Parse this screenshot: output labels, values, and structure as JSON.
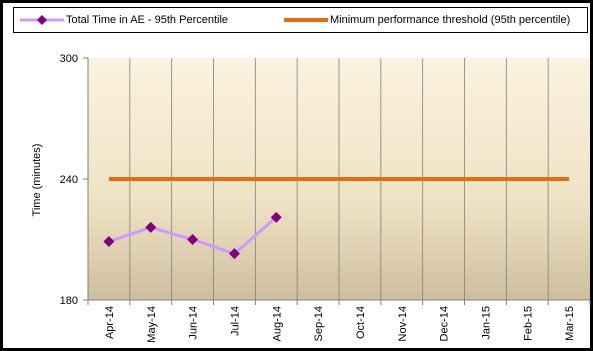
{
  "chart_data": {
    "type": "line",
    "categories": [
      "Apr-14",
      "May-14",
      "Jun-14",
      "Jul-14",
      "Aug-14",
      "Sep-14",
      "Oct-14",
      "Nov-14",
      "Dec-14",
      "Jan-15",
      "Feb-15",
      "Mar-15"
    ],
    "series": [
      {
        "name": "Total Time in AE - 95th Percentile",
        "values": [
          209,
          216,
          210,
          203,
          221,
          null,
          null,
          null,
          null,
          null,
          null,
          null
        ],
        "line_color": "#cc99ff",
        "marker_color": "#800080",
        "marker": "diamond"
      },
      {
        "name": "Minimum performance threshold (95th percentile)",
        "values": [
          240,
          240,
          240,
          240,
          240,
          240,
          240,
          240,
          240,
          240,
          240,
          240
        ],
        "line_color": "#e46c0a",
        "marker": "none"
      }
    ],
    "ylabel": "Time (minutes)",
    "xlabel": "",
    "ylim": [
      180,
      300
    ],
    "yticks": [
      180,
      240,
      300
    ],
    "grid": "vertical",
    "legend_position": "top",
    "background_gradient": [
      "#fbf2df",
      "#cdbf9d"
    ]
  }
}
